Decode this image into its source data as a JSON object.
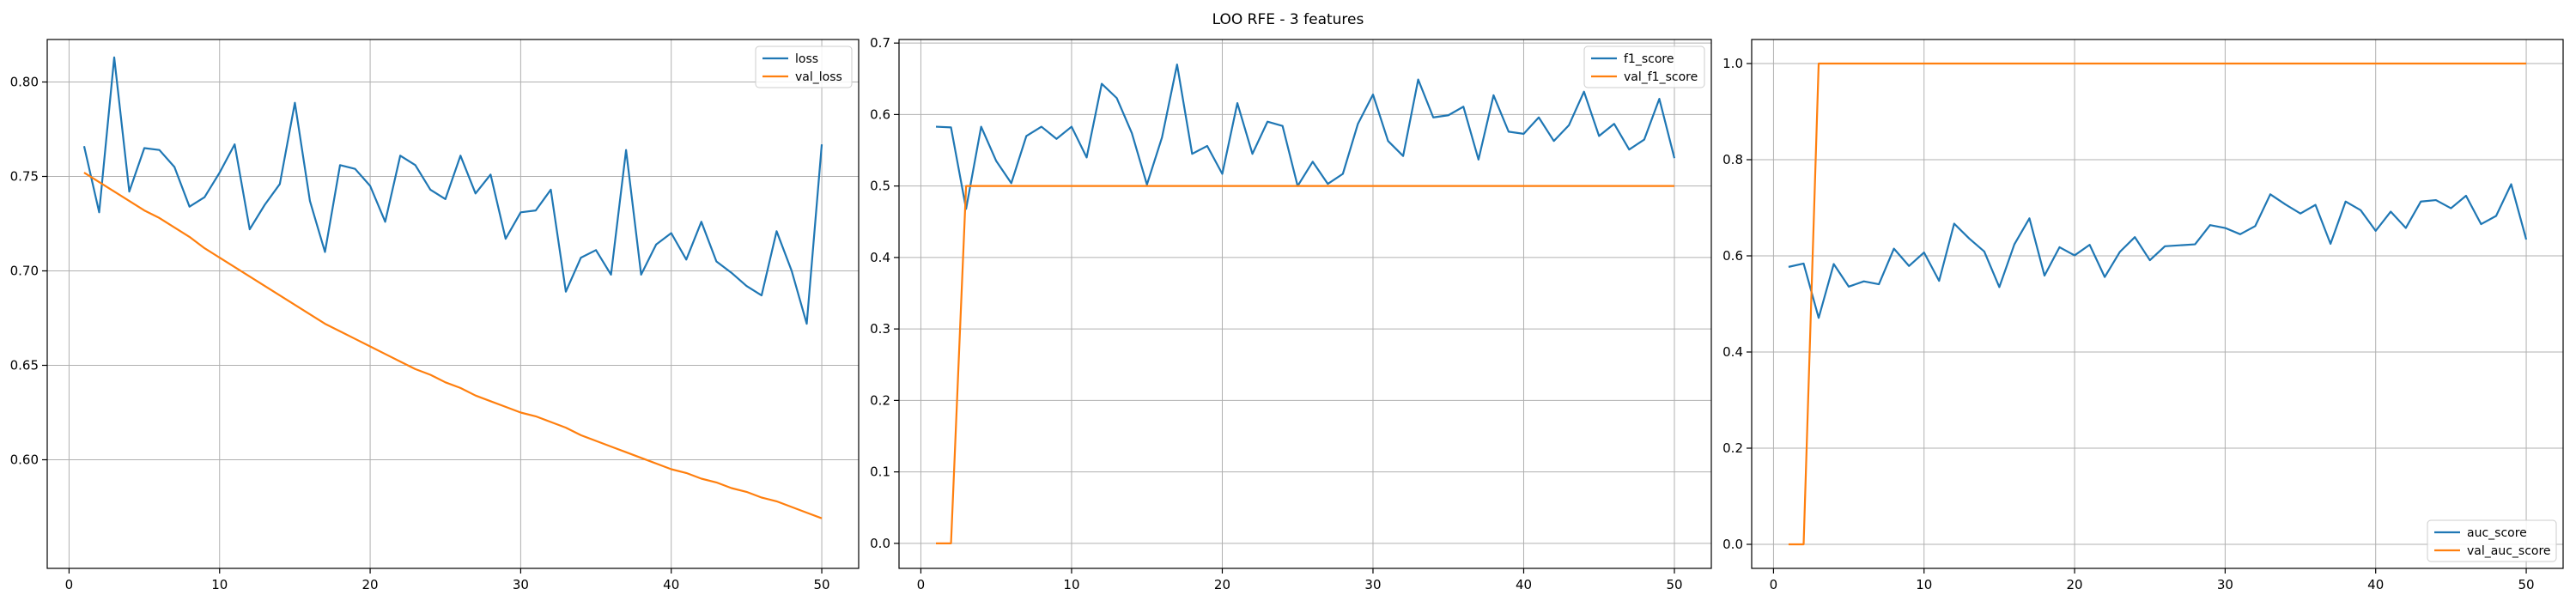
{
  "figure_title": "LOO RFE - 3 features",
  "colors": {
    "series1": "#1f77b4",
    "series2": "#ff7f0e",
    "grid": "#b0b0b0",
    "axis": "#000000"
  },
  "chart_data": [
    {
      "type": "line",
      "title": "",
      "xlabel": "",
      "ylabel": "",
      "xlim": [
        -1.45,
        52.45
      ],
      "ylim": [
        0.5425,
        0.8225
      ],
      "xticks": [
        0,
        10,
        20,
        30,
        40,
        50
      ],
      "xtick_labels": [
        "0",
        "10",
        "20",
        "30",
        "40",
        "50"
      ],
      "yticks": [
        0.6,
        0.65,
        0.7,
        0.75,
        0.8
      ],
      "ytick_labels": [
        "0.60",
        "0.65",
        "0.70",
        "0.75",
        "0.80"
      ],
      "grid": true,
      "legend_position": "top-right",
      "series": [
        {
          "name": "loss",
          "color": "#1f77b4",
          "x": [
            1,
            2,
            3,
            4,
            5,
            6,
            7,
            8,
            9,
            10,
            11,
            12,
            13,
            14,
            15,
            16,
            17,
            18,
            19,
            20,
            21,
            22,
            23,
            24,
            25,
            26,
            27,
            28,
            29,
            30,
            31,
            32,
            33,
            34,
            35,
            36,
            37,
            38,
            39,
            40,
            41,
            42,
            43,
            44,
            45,
            46,
            47,
            48,
            49,
            50
          ],
          "values": [
            0.766,
            0.731,
            0.813,
            0.742,
            0.765,
            0.764,
            0.755,
            0.734,
            0.739,
            0.752,
            0.767,
            0.722,
            0.735,
            0.746,
            0.789,
            0.737,
            0.71,
            0.756,
            0.754,
            0.745,
            0.726,
            0.761,
            0.756,
            0.743,
            0.738,
            0.761,
            0.741,
            0.751,
            0.717,
            0.731,
            0.732,
            0.743,
            0.689,
            0.707,
            0.711,
            0.698,
            0.764,
            0.698,
            0.714,
            0.72,
            0.706,
            0.726,
            0.705,
            0.699,
            0.692,
            0.687,
            0.721,
            0.7,
            0.672,
            0.767
          ]
        },
        {
          "name": "val_loss",
          "color": "#ff7f0e",
          "x": [
            1,
            2,
            3,
            4,
            5,
            6,
            7,
            8,
            9,
            10,
            11,
            12,
            13,
            14,
            15,
            16,
            17,
            18,
            19,
            20,
            21,
            22,
            23,
            24,
            25,
            26,
            27,
            28,
            29,
            30,
            31,
            32,
            33,
            34,
            35,
            36,
            37,
            38,
            39,
            40,
            41,
            42,
            43,
            44,
            45,
            46,
            47,
            48,
            49,
            50
          ],
          "values": [
            0.752,
            0.747,
            0.742,
            0.737,
            0.732,
            0.728,
            0.723,
            0.718,
            0.712,
            0.707,
            0.702,
            0.697,
            0.692,
            0.687,
            0.682,
            0.677,
            0.672,
            0.668,
            0.664,
            0.66,
            0.656,
            0.652,
            0.648,
            0.645,
            0.641,
            0.638,
            0.634,
            0.631,
            0.628,
            0.625,
            0.623,
            0.62,
            0.617,
            0.613,
            0.61,
            0.607,
            0.604,
            0.601,
            0.598,
            0.595,
            0.593,
            0.59,
            0.588,
            0.585,
            0.583,
            0.58,
            0.578,
            0.575,
            0.572,
            0.569
          ]
        }
      ]
    },
    {
      "type": "line",
      "title": "",
      "xlabel": "",
      "ylabel": "",
      "xlim": [
        -1.45,
        52.45
      ],
      "ylim": [
        -0.035,
        0.705
      ],
      "xticks": [
        0,
        10,
        20,
        30,
        40,
        50
      ],
      "xtick_labels": [
        "0",
        "10",
        "20",
        "30",
        "40",
        "50"
      ],
      "yticks": [
        0.0,
        0.1,
        0.2,
        0.3,
        0.4,
        0.5,
        0.6,
        0.7
      ],
      "ytick_labels": [
        "0.0",
        "0.1",
        "0.2",
        "0.3",
        "0.4",
        "0.5",
        "0.6",
        "0.7"
      ],
      "grid": true,
      "legend_position": "top-right",
      "series": [
        {
          "name": "f1_score",
          "color": "#1f77b4",
          "x": [
            1,
            2,
            3,
            4,
            5,
            6,
            7,
            8,
            9,
            10,
            11,
            12,
            13,
            14,
            15,
            16,
            17,
            18,
            19,
            20,
            21,
            22,
            23,
            24,
            25,
            26,
            27,
            28,
            29,
            30,
            31,
            32,
            33,
            34,
            35,
            36,
            37,
            38,
            39,
            40,
            41,
            42,
            43,
            44,
            45,
            46,
            47,
            48,
            49,
            50
          ],
          "values": [
            0.583,
            0.582,
            0.468,
            0.583,
            0.535,
            0.504,
            0.57,
            0.583,
            0.566,
            0.583,
            0.54,
            0.643,
            0.623,
            0.574,
            0.502,
            0.568,
            0.67,
            0.545,
            0.556,
            0.517,
            0.616,
            0.545,
            0.59,
            0.584,
            0.5,
            0.534,
            0.503,
            0.517,
            0.587,
            0.628,
            0.563,
            0.542,
            0.649,
            0.596,
            0.599,
            0.611,
            0.537,
            0.627,
            0.576,
            0.573,
            0.596,
            0.563,
            0.585,
            0.632,
            0.57,
            0.587,
            0.551,
            0.565,
            0.622,
            0.539
          ]
        },
        {
          "name": "val_f1_score",
          "color": "#ff7f0e",
          "x": [
            1,
            2,
            3,
            4,
            5,
            6,
            7,
            8,
            9,
            10,
            11,
            12,
            13,
            14,
            15,
            16,
            17,
            18,
            19,
            20,
            21,
            22,
            23,
            24,
            25,
            26,
            27,
            28,
            29,
            30,
            31,
            32,
            33,
            34,
            35,
            36,
            37,
            38,
            39,
            40,
            41,
            42,
            43,
            44,
            45,
            46,
            47,
            48,
            49,
            50
          ],
          "values": [
            0.0,
            0.0,
            0.5,
            0.5,
            0.5,
            0.5,
            0.5,
            0.5,
            0.5,
            0.5,
            0.5,
            0.5,
            0.5,
            0.5,
            0.5,
            0.5,
            0.5,
            0.5,
            0.5,
            0.5,
            0.5,
            0.5,
            0.5,
            0.5,
            0.5,
            0.5,
            0.5,
            0.5,
            0.5,
            0.5,
            0.5,
            0.5,
            0.5,
            0.5,
            0.5,
            0.5,
            0.5,
            0.5,
            0.5,
            0.5,
            0.5,
            0.5,
            0.5,
            0.5,
            0.5,
            0.5,
            0.5,
            0.5,
            0.5,
            0.5
          ]
        }
      ]
    },
    {
      "type": "line",
      "title": "",
      "xlabel": "",
      "ylabel": "",
      "xlim": [
        -1.45,
        52.45
      ],
      "ylim": [
        -0.05,
        1.05
      ],
      "xticks": [
        0,
        10,
        20,
        30,
        40,
        50
      ],
      "xtick_labels": [
        "0",
        "10",
        "20",
        "30",
        "40",
        "50"
      ],
      "yticks": [
        0.0,
        0.2,
        0.4,
        0.6,
        0.8,
        1.0
      ],
      "ytick_labels": [
        "0.0",
        "0.2",
        "0.4",
        "0.6",
        "0.8",
        "1.0"
      ],
      "grid": true,
      "legend_position": "bottom-right",
      "series": [
        {
          "name": "auc_score",
          "color": "#1f77b4",
          "x": [
            1,
            2,
            3,
            4,
            5,
            6,
            7,
            8,
            9,
            10,
            11,
            12,
            13,
            14,
            15,
            16,
            17,
            18,
            19,
            20,
            21,
            22,
            23,
            24,
            25,
            26,
            27,
            28,
            29,
            30,
            31,
            32,
            33,
            34,
            35,
            36,
            37,
            38,
            39,
            40,
            41,
            42,
            43,
            44,
            45,
            46,
            47,
            48,
            49,
            50
          ],
          "values": [
            0.577,
            0.584,
            0.471,
            0.583,
            0.536,
            0.547,
            0.541,
            0.615,
            0.579,
            0.607,
            0.548,
            0.667,
            0.636,
            0.609,
            0.535,
            0.624,
            0.678,
            0.559,
            0.618,
            0.601,
            0.623,
            0.556,
            0.608,
            0.639,
            0.591,
            0.62,
            0.622,
            0.624,
            0.664,
            0.658,
            0.645,
            0.662,
            0.728,
            0.707,
            0.688,
            0.706,
            0.625,
            0.713,
            0.695,
            0.652,
            0.692,
            0.658,
            0.713,
            0.716,
            0.699,
            0.725,
            0.666,
            0.683,
            0.749,
            0.634
          ]
        },
        {
          "name": "val_auc_score",
          "color": "#ff7f0e",
          "x": [
            1,
            2,
            3,
            4,
            5,
            6,
            7,
            8,
            9,
            10,
            11,
            12,
            13,
            14,
            15,
            16,
            17,
            18,
            19,
            20,
            21,
            22,
            23,
            24,
            25,
            26,
            27,
            28,
            29,
            30,
            31,
            32,
            33,
            34,
            35,
            36,
            37,
            38,
            39,
            40,
            41,
            42,
            43,
            44,
            45,
            46,
            47,
            48,
            49,
            50
          ],
          "values": [
            0.0,
            0.0,
            1.0,
            1.0,
            1.0,
            1.0,
            1.0,
            1.0,
            1.0,
            1.0,
            1.0,
            1.0,
            1.0,
            1.0,
            1.0,
            1.0,
            1.0,
            1.0,
            1.0,
            1.0,
            1.0,
            1.0,
            1.0,
            1.0,
            1.0,
            1.0,
            1.0,
            1.0,
            1.0,
            1.0,
            1.0,
            1.0,
            1.0,
            1.0,
            1.0,
            1.0,
            1.0,
            1.0,
            1.0,
            1.0,
            1.0,
            1.0,
            1.0,
            1.0,
            1.0,
            1.0,
            1.0,
            1.0,
            1.0,
            1.0
          ]
        }
      ]
    }
  ]
}
